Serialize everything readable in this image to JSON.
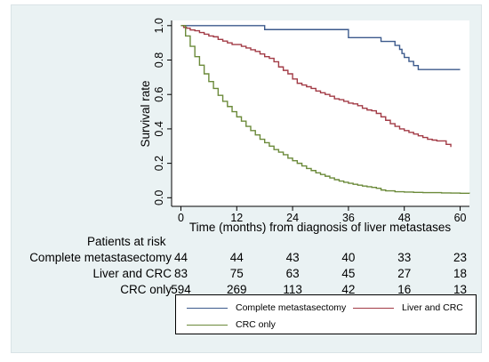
{
  "chart_data": {
    "type": "line",
    "step": true,
    "xlabel": "Time (months) from diagnosis of liver metastases",
    "ylabel": "Survival rate",
    "xlim": [
      -2,
      62
    ],
    "ylim": [
      -0.05,
      1.03
    ],
    "xticks": [
      "0",
      "12",
      "24",
      "36",
      "48",
      "60"
    ],
    "yticks": [
      "0.0",
      "0.2",
      "0.4",
      "0.6",
      "0.8",
      "1.0"
    ],
    "grid": false,
    "legend_position": "bottom-right",
    "series": [
      {
        "name": "Complete metastasectomy",
        "color": "#3c5a8c",
        "x": [
          0,
          18,
          36,
          43,
          46,
          47,
          47.5,
          48,
          49,
          50,
          51,
          53,
          60
        ],
        "y": [
          1.0,
          0.977,
          0.93,
          0.908,
          0.885,
          0.862,
          0.838,
          0.815,
          0.792,
          0.768,
          0.745,
          0.745,
          0.745
        ]
      },
      {
        "name": "Liver and CRC",
        "color": "#a23b46",
        "x": [
          0,
          0.6,
          1.2,
          2,
          3,
          4,
          5,
          6,
          7,
          8,
          9,
          10,
          11,
          12,
          13,
          14,
          15,
          16,
          17,
          18,
          19,
          20,
          21,
          22,
          23,
          24,
          25,
          26,
          27,
          28,
          29,
          30,
          31,
          32,
          33,
          34,
          35,
          36,
          37,
          38,
          39,
          40,
          41,
          42,
          43,
          44,
          45,
          46,
          47,
          48,
          49,
          50,
          51,
          52,
          53,
          54,
          55,
          56,
          57,
          58
        ],
        "y": [
          1.0,
          0.99,
          0.985,
          0.975,
          0.97,
          0.96,
          0.95,
          0.94,
          0.935,
          0.92,
          0.91,
          0.9,
          0.89,
          0.89,
          0.88,
          0.87,
          0.86,
          0.85,
          0.835,
          0.82,
          0.81,
          0.79,
          0.76,
          0.74,
          0.72,
          0.69,
          0.665,
          0.655,
          0.645,
          0.635,
          0.62,
          0.61,
          0.6,
          0.59,
          0.575,
          0.57,
          0.56,
          0.55,
          0.545,
          0.535,
          0.52,
          0.51,
          0.505,
          0.49,
          0.47,
          0.45,
          0.43,
          0.415,
          0.4,
          0.39,
          0.38,
          0.37,
          0.36,
          0.35,
          0.34,
          0.335,
          0.33,
          0.33,
          0.31,
          0.295
        ]
      },
      {
        "name": "CRC only",
        "color": "#6b8a3a",
        "x": [
          0,
          1,
          2,
          3,
          4,
          5,
          6,
          7,
          8,
          9,
          10,
          11,
          12,
          13,
          14,
          15,
          16,
          17,
          18,
          19,
          20,
          21,
          22,
          23,
          24,
          25,
          26,
          27,
          28,
          29,
          30,
          31,
          32,
          33,
          34,
          35,
          36,
          37,
          38,
          39,
          40,
          41,
          42,
          43,
          44,
          46,
          48,
          50,
          52,
          54,
          56,
          58,
          60,
          62
        ],
        "y": [
          1.0,
          0.94,
          0.88,
          0.82,
          0.77,
          0.72,
          0.675,
          0.635,
          0.595,
          0.56,
          0.53,
          0.5,
          0.47,
          0.445,
          0.415,
          0.39,
          0.365,
          0.34,
          0.32,
          0.3,
          0.28,
          0.265,
          0.25,
          0.23,
          0.215,
          0.2,
          0.185,
          0.17,
          0.158,
          0.145,
          0.135,
          0.125,
          0.115,
          0.105,
          0.097,
          0.09,
          0.084,
          0.078,
          0.073,
          0.068,
          0.064,
          0.06,
          0.055,
          0.045,
          0.04,
          0.035,
          0.033,
          0.031,
          0.03,
          0.03,
          0.028,
          0.027,
          0.026,
          0.025
        ]
      }
    ],
    "risk_table": {
      "title": "Patients at risk",
      "times": [
        0,
        12,
        24,
        36,
        48,
        60
      ],
      "rows": [
        {
          "label": "Complete metastasectomy",
          "values": [
            "44",
            "44",
            "43",
            "40",
            "33",
            "23"
          ]
        },
        {
          "label": "Liver and CRC",
          "values": [
            "83",
            "75",
            "63",
            "45",
            "27",
            "18"
          ]
        },
        {
          "label": "CRC only",
          "values": [
            "594",
            "269",
            "113",
            "42",
            "16",
            "13"
          ]
        }
      ]
    }
  }
}
